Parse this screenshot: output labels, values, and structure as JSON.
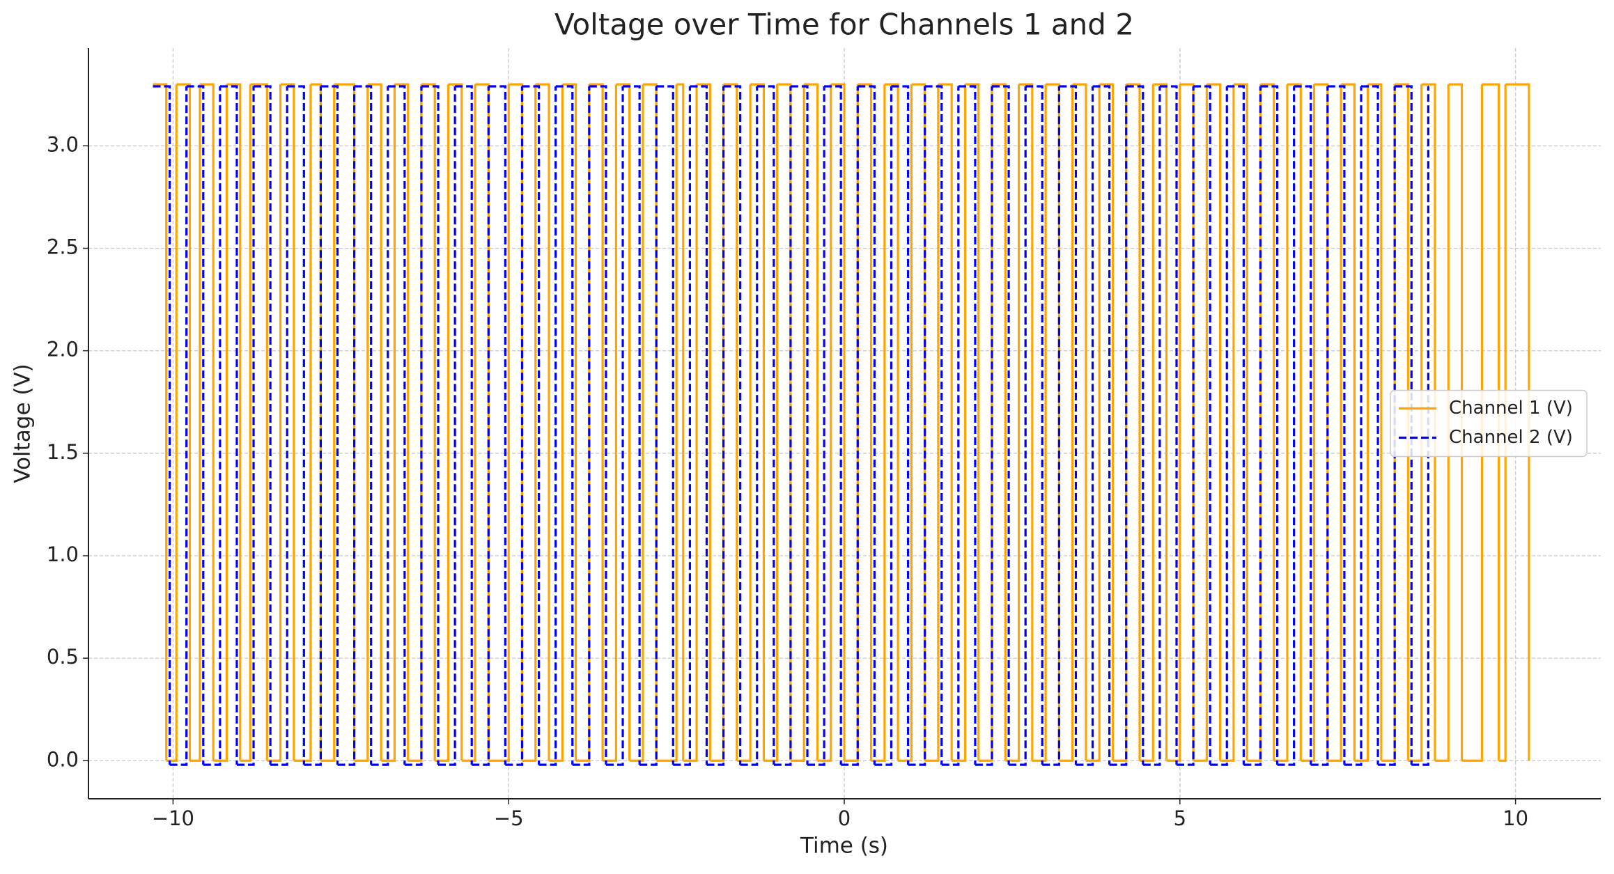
{
  "chart_data": {
    "type": "line",
    "title": "Voltage over Time for Channels 1 and 2",
    "x_label": "Time (s)",
    "y_label": "Voltage (V)",
    "step": "post",
    "xlim": [
      -11.26,
      11.27
    ],
    "ylim": [
      -0.186,
      3.477
    ],
    "xticks": [
      {
        "value": -10,
        "label": "−10"
      },
      {
        "value": -5,
        "label": "−5"
      },
      0,
      5,
      10
    ],
    "yticks": [
      {
        "value": 0,
        "label": "0.0"
      },
      {
        "value": 0.5,
        "label": "0.5"
      },
      {
        "value": 1,
        "label": "1.0"
      },
      {
        "value": 1.5,
        "label": "1.5"
      },
      {
        "value": 2,
        "label": "2.0"
      },
      {
        "value": 2.5,
        "label": "2.5"
      },
      {
        "value": 3,
        "label": "3.0"
      }
    ],
    "grid": true,
    "legend": "center right",
    "series": [
      {
        "name": "Channel 1 (V)",
        "color": "#ffa500",
        "dash": "solid",
        "x": [
          -10.3,
          -10.1,
          -9.95,
          -9.75,
          -9.6,
          -9.4,
          -9.2,
          -9.0,
          -8.85,
          -8.6,
          -8.4,
          -8.2,
          -7.95,
          -7.8,
          -7.6,
          -7.3,
          -7.1,
          -6.9,
          -6.7,
          -6.5,
          -6.3,
          -6.1,
          -5.9,
          -5.7,
          -5.5,
          -5.3,
          -5.0,
          -4.8,
          -4.6,
          -4.4,
          -4.2,
          -4.0,
          -3.8,
          -3.6,
          -3.4,
          -3.2,
          -3.0,
          -2.8,
          -2.5,
          -2.4,
          -2.2,
          -2.0,
          -1.8,
          -1.6,
          -1.4,
          -1.2,
          -1.0,
          -0.8,
          -0.6,
          -0.4,
          -0.2,
          0.0,
          0.2,
          0.4,
          0.6,
          0.8,
          1.0,
          1.2,
          1.4,
          1.6,
          1.8,
          2.0,
          2.2,
          2.4,
          2.6,
          2.8,
          3.0,
          3.2,
          3.4,
          3.6,
          3.8,
          4.0,
          4.2,
          4.4,
          4.6,
          4.8,
          5.0,
          5.2,
          5.4,
          5.6,
          5.8,
          6.0,
          6.2,
          6.4,
          6.6,
          6.8,
          7.0,
          7.2,
          7.4,
          7.6,
          7.8,
          8.0,
          8.2,
          8.4,
          8.6,
          8.8,
          9.0,
          9.2,
          9.5,
          9.75,
          9.85,
          10.2
        ],
        "values": [
          3.3,
          0,
          3.3,
          0,
          3.3,
          0,
          3.3,
          0,
          3.3,
          0,
          3.3,
          0,
          3.3,
          0,
          3.3,
          0,
          3.3,
          0,
          3.3,
          0,
          3.3,
          0,
          3.3,
          0,
          3.3,
          0,
          3.3,
          0,
          3.3,
          0,
          3.3,
          0,
          3.3,
          0,
          3.3,
          0,
          3.3,
          0,
          3.3,
          0,
          3.3,
          0,
          3.3,
          0,
          3.3,
          0,
          3.3,
          0,
          3.3,
          0,
          3.3,
          0,
          3.3,
          0,
          3.3,
          0,
          3.3,
          0,
          3.3,
          0,
          3.3,
          0,
          3.3,
          0,
          3.3,
          0,
          3.3,
          0,
          3.3,
          0,
          3.3,
          0,
          3.3,
          0,
          3.3,
          0,
          3.3,
          0,
          3.3,
          0,
          3.3,
          0,
          3.3,
          0,
          3.3,
          0,
          3.3,
          0,
          3.3,
          0,
          3.3,
          0,
          3.3,
          0,
          3.3,
          0,
          3.3,
          0,
          3.3,
          0,
          3.3,
          0
        ]
      },
      {
        "name": "Channel 2 (V)",
        "color": "#0000ff",
        "dash": "dashed",
        "x": [
          -10.3,
          -10.05,
          -9.8,
          -9.55,
          -9.3,
          -9.05,
          -8.8,
          -8.55,
          -8.3,
          -8.05,
          -7.8,
          -7.55,
          -7.3,
          -7.05,
          -6.8,
          -6.55,
          -6.3,
          -6.05,
          -5.8,
          -5.55,
          -5.3,
          -5.05,
          -4.8,
          -4.55,
          -4.3,
          -4.05,
          -3.8,
          -3.55,
          -3.3,
          -3.05,
          -2.8,
          -2.55,
          -2.3,
          -2.05,
          -1.8,
          -1.55,
          -1.3,
          -1.05,
          -0.8,
          -0.55,
          -0.3,
          -0.05,
          0.2,
          0.45,
          0.7,
          0.95,
          1.2,
          1.45,
          1.7,
          1.95,
          2.2,
          2.45,
          2.7,
          2.95,
          3.2,
          3.45,
          3.7,
          3.95,
          4.2,
          4.45,
          4.7,
          4.95,
          5.2,
          5.45,
          5.7,
          5.95,
          6.2,
          6.45,
          6.7,
          6.95,
          7.2,
          7.45,
          7.7,
          7.95,
          8.2,
          8.45,
          8.7
        ],
        "values": [
          3.29,
          -0.02,
          3.29,
          -0.02,
          3.29,
          -0.02,
          3.29,
          -0.02,
          3.29,
          -0.02,
          3.29,
          -0.02,
          3.29,
          -0.02,
          3.29,
          -0.02,
          3.29,
          -0.02,
          3.29,
          -0.02,
          3.29,
          -0.02,
          3.29,
          -0.02,
          3.29,
          -0.02,
          3.29,
          -0.02,
          3.29,
          -0.02,
          3.29,
          -0.02,
          3.29,
          -0.02,
          3.29,
          -0.02,
          3.29,
          -0.02,
          3.29,
          -0.02,
          3.29,
          -0.02,
          3.29,
          -0.02,
          3.29,
          -0.02,
          3.29,
          -0.02,
          3.29,
          -0.02,
          3.29,
          -0.02,
          3.29,
          -0.02,
          3.29,
          -0.02,
          3.29,
          -0.02,
          3.29,
          -0.02,
          3.29,
          -0.02,
          3.29,
          -0.02,
          3.29,
          -0.02,
          3.29,
          -0.02,
          3.29,
          -0.02,
          3.29,
          -0.02,
          3.29,
          -0.02,
          3.29,
          -0.02,
          3.29
        ]
      }
    ]
  }
}
